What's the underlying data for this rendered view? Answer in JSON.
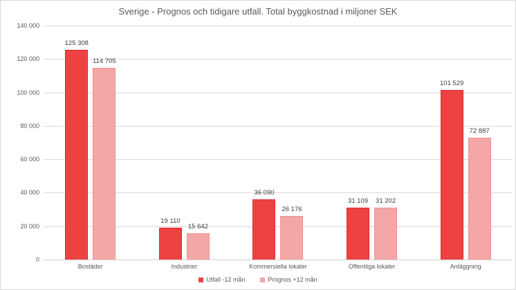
{
  "chart_data": {
    "type": "bar",
    "title": "Sverige - Prognos och tidigare utfall. Total byggkostnad i miljoner SEK",
    "categories": [
      "Bostäder",
      "Industrier",
      "Kommersiella lokaler",
      "Offentliga lokaler",
      "Anläggning"
    ],
    "series": [
      {
        "name": "Utfall -12 mån",
        "color": "#ec4242",
        "border_color": "#e02b2b",
        "values": [
          125308,
          19110,
          36090,
          31109,
          101529
        ],
        "value_labels": [
          "125 308",
          "19 110",
          "36 090",
          "31 109",
          "101 529"
        ]
      },
      {
        "name": "Prognos +12 mån",
        "color": "#f5a6a6",
        "border_color": "#ee8f8f",
        "values": [
          114705,
          15642,
          26176,
          31202,
          72887
        ],
        "value_labels": [
          "114 705",
          "15 642",
          "26 176",
          "31 202",
          "72 887"
        ]
      }
    ],
    "ylim": [
      0,
      140000
    ],
    "yticks": [
      {
        "value": 0,
        "label": "0"
      },
      {
        "value": 20000,
        "label": "20 000"
      },
      {
        "value": 40000,
        "label": "40 000"
      },
      {
        "value": 60000,
        "label": "60 000"
      },
      {
        "value": 80000,
        "label": "80 000"
      },
      {
        "value": 100000,
        "label": "100 000"
      },
      {
        "value": 120000,
        "label": "120 000"
      },
      {
        "value": 140000,
        "label": "140 000"
      }
    ],
    "grid": true,
    "legend_position": "bottom",
    "colors": {
      "gridline": "#d9d9d9",
      "axis_line": "#d0d0d0",
      "text": "#595959",
      "data_label": "#3f3f3f",
      "background": "#ffffff",
      "border": "#d9d9d9"
    }
  }
}
